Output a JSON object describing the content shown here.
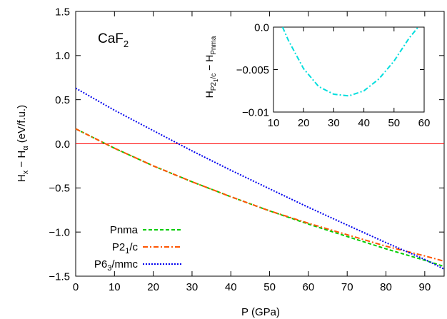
{
  "chart_data": [
    {
      "type": "line",
      "label": "CaF",
      "label_sub": "2",
      "xlabel": "P (GPa)",
      "ylabel": {
        "main": "H",
        "sub1": "x",
        "mid": " − H",
        "sub2": "α",
        "tail": " (eV/f.u.)"
      },
      "xlim": [
        0,
        95
      ],
      "ylim": [
        -1.5,
        1.5
      ],
      "xticks": [
        0,
        10,
        20,
        30,
        40,
        50,
        60,
        70,
        80,
        90
      ],
      "yticks": [
        "−1.5",
        "−1.0",
        "−0.5",
        "0.0",
        "0.5",
        "1.0",
        "1.5"
      ],
      "ytick_values": [
        -1.5,
        -1.0,
        -0.5,
        0.0,
        0.5,
        1.0,
        1.5
      ],
      "reference_line": {
        "y": 0.0,
        "color": "#ff0000"
      },
      "legend_position": "bottom-left",
      "series": [
        {
          "name": "Pnma",
          "name_main": "Pnma",
          "name_sub": "",
          "name_tail": "",
          "color": "#00cc00",
          "dash": "dashed",
          "x": [
            0,
            10,
            20,
            30,
            40,
            50,
            60,
            70,
            80,
            90,
            95
          ],
          "y": [
            0.17,
            -0.05,
            -0.25,
            -0.43,
            -0.6,
            -0.76,
            -0.91,
            -1.05,
            -1.19,
            -1.32,
            -1.39
          ]
        },
        {
          "name": "P21/c",
          "name_main": "P2",
          "name_sub": "1",
          "name_tail": "/c",
          "color": "#ff5500",
          "dash": "dashdot",
          "x": [
            0,
            10,
            20,
            30,
            40,
            50,
            60,
            70,
            80,
            90,
            95
          ],
          "y": [
            0.17,
            -0.05,
            -0.25,
            -0.43,
            -0.6,
            -0.76,
            -0.9,
            -1.03,
            -1.16,
            -1.27,
            -1.33
          ]
        },
        {
          "name": "P63/mmc",
          "name_main": "P6",
          "name_sub": "3",
          "name_tail": "/mmc",
          "color": "#0000ee",
          "dash": "dotted",
          "x": [
            0,
            10,
            20,
            30,
            40,
            50,
            60,
            70,
            80,
            90,
            95
          ],
          "y": [
            0.63,
            0.38,
            0.15,
            -0.08,
            -0.3,
            -0.51,
            -0.72,
            -0.92,
            -1.12,
            -1.31,
            -1.42
          ]
        }
      ]
    },
    {
      "type": "line",
      "ylabel": {
        "main": "H",
        "sub1": "P2",
        "sub1b": "1",
        "sub1c": "/c",
        "mid": " − H",
        "sub2": "Pnma"
      },
      "xlim": [
        10,
        60
      ],
      "ylim": [
        -0.01,
        0.0
      ],
      "xticks": [
        10,
        20,
        30,
        40,
        50,
        60
      ],
      "yticks": [
        "0.0",
        "−0.005",
        "−0.01"
      ],
      "ytick_values": [
        0.0,
        -0.005,
        -0.01
      ],
      "series": [
        {
          "name": "",
          "color": "#00dddd",
          "dash": "dashdot",
          "x": [
            13,
            15,
            20,
            25,
            30,
            35,
            40,
            45,
            50,
            55,
            58
          ],
          "y": [
            0.0,
            -0.0016,
            -0.0049,
            -0.007,
            -0.0079,
            -0.0081,
            -0.0075,
            -0.0061,
            -0.004,
            -0.0013,
            0.0
          ]
        }
      ]
    }
  ]
}
